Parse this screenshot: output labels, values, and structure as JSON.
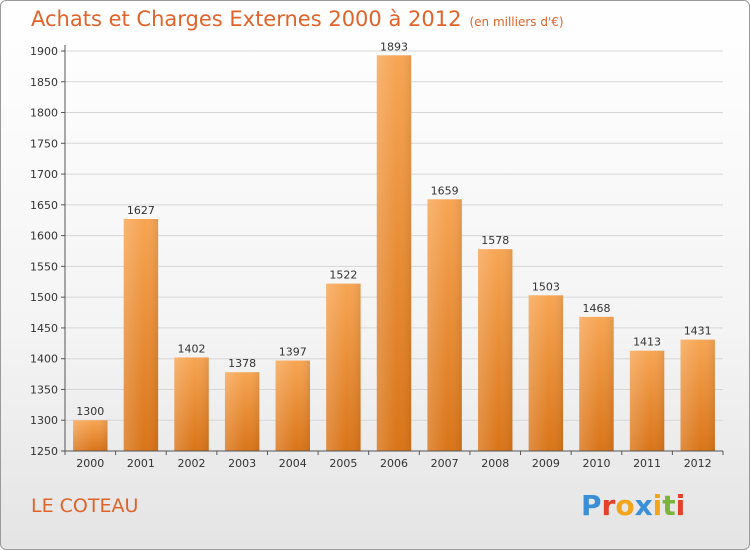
{
  "header": {
    "title": "Achats et Charges Externes 2000 à 2012",
    "subtitle": "(en milliers d'€)"
  },
  "footer": {
    "commune": "LE COTEAU"
  },
  "logo": {
    "text": "Proxiti",
    "letters": [
      {
        "char": "P",
        "color": "#3a8fd6"
      },
      {
        "char": "r",
        "color": "#e2422a"
      },
      {
        "char": "o",
        "color": "#f2a51a"
      },
      {
        "char": "x",
        "color": "#3a8fd6"
      },
      {
        "char": "i",
        "color": "#f2a51a"
      },
      {
        "char": "t",
        "color": "#7bb43a"
      },
      {
        "char": "i",
        "color": "#e2422a"
      }
    ]
  },
  "chart_data": {
    "type": "bar",
    "title": "Achats et Charges Externes 2000 à 2012",
    "subtitle": "(en milliers d'€)",
    "categories": [
      "2000",
      "2001",
      "2002",
      "2003",
      "2004",
      "2005",
      "2006",
      "2007",
      "2008",
      "2009",
      "2010",
      "2011",
      "2012"
    ],
    "values": [
      1300,
      1627,
      1402,
      1378,
      1397,
      1522,
      1893,
      1659,
      1578,
      1503,
      1468,
      1413,
      1431
    ],
    "ylim": [
      1250,
      1900
    ],
    "yticks": [
      1250,
      1300,
      1350,
      1400,
      1450,
      1500,
      1550,
      1600,
      1650,
      1700,
      1750,
      1800,
      1850,
      1900
    ],
    "grid": true,
    "bar_color_top": "#f7a553",
    "bar_color_bottom": "#d97418",
    "label_color": "#333333",
    "axis_color": "#555555"
  }
}
